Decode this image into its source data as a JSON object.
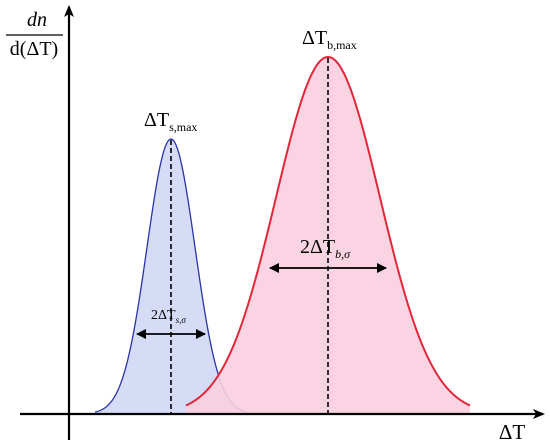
{
  "diagram": {
    "y_axis_label_numerator": "dn",
    "y_axis_label_denominator": "d(ΔT)",
    "x_axis_label": "ΔT",
    "narrow_peak": {
      "label_main": "ΔT",
      "label_sub": "s,max",
      "width_label_prefix": "2ΔT",
      "width_label_sub": "s,σ",
      "fill_color": "#d6dcf6",
      "stroke_color": "#2a34a8"
    },
    "wide_peak": {
      "label_main": "ΔT",
      "label_sub": "b,max",
      "width_label_prefix": "2ΔT",
      "width_label_sub": "b,σ",
      "fill_color": "#f9cfe0",
      "stroke_color": "#e0283a"
    },
    "axis_color": "#000000"
  }
}
